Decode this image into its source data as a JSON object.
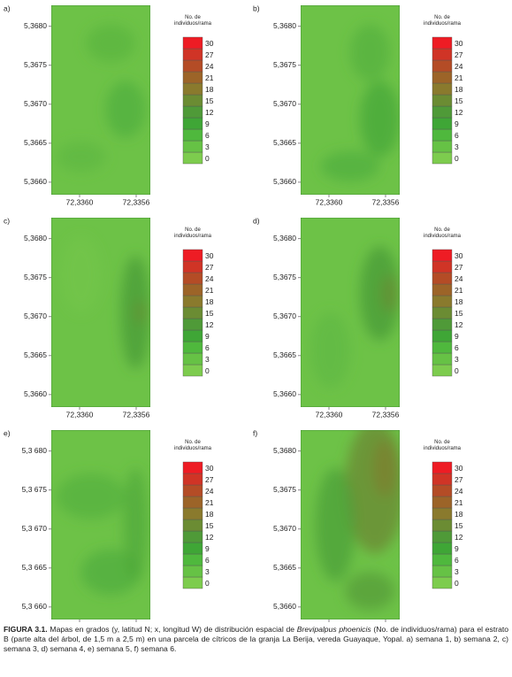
{
  "chart_data": [
    {
      "type": "contour",
      "panel": "a)",
      "xlim": [
        72.3362,
        72.3355
      ],
      "ylim": [
        5.36584,
        5.36827
      ],
      "xticks": [
        {
          "value": 72.336,
          "label": "72,3360"
        },
        {
          "value": 72.3356,
          "label": "72,3356"
        }
      ],
      "yticks": [
        {
          "value": 5.368,
          "label": "5,3680"
        },
        {
          "value": 5.3675,
          "label": "5,3675"
        },
        {
          "value": 5.367,
          "label": "5,3670"
        },
        {
          "value": 5.3665,
          "label": "5,3665"
        },
        {
          "value": 5.366,
          "label": "5,3660"
        }
      ],
      "legend": {
        "title": "No. de individuos/rama",
        "levels": [
          0,
          3,
          6,
          9,
          12,
          15,
          18,
          21,
          24,
          27,
          30
        ],
        "colors": [
          "#7dcc4e",
          "#66c245",
          "#4fb83d",
          "#3fa636",
          "#4f9a38",
          "#6b8c33",
          "#8a7a2d",
          "#9c6428",
          "#b44c26",
          "#d03426",
          "#ee1c24"
        ]
      }
    },
    {
      "type": "contour",
      "panel": "b)",
      "xlim": [
        72.3362,
        72.3355
      ],
      "ylim": [
        5.36584,
        5.36827
      ],
      "xticks": [
        {
          "value": 72.336,
          "label": "72,3360"
        },
        {
          "value": 72.3356,
          "label": "72,3356"
        }
      ],
      "yticks": [
        {
          "value": 5.368,
          "label": "5,3680"
        },
        {
          "value": 5.3675,
          "label": "5,3675"
        },
        {
          "value": 5.367,
          "label": "5,3670"
        },
        {
          "value": 5.3665,
          "label": "5,3665"
        },
        {
          "value": 5.366,
          "label": "5,3660"
        }
      ],
      "legend": {
        "title": "No. de individuos/rama",
        "levels": [
          0,
          3,
          6,
          9,
          12,
          15,
          18,
          21,
          24,
          27,
          30
        ],
        "colors": [
          "#7dcc4e",
          "#66c245",
          "#4fb83d",
          "#3fa636",
          "#4f9a38",
          "#6b8c33",
          "#8a7a2d",
          "#9c6428",
          "#b44c26",
          "#d03426",
          "#ee1c24"
        ]
      }
    },
    {
      "type": "contour",
      "panel": "c)",
      "xlim": [
        72.3362,
        72.3355
      ],
      "ylim": [
        5.36584,
        5.36827
      ],
      "xticks": [
        {
          "value": 72.336,
          "label": "72,3360"
        },
        {
          "value": 72.3356,
          "label": "72,3356"
        }
      ],
      "yticks": [
        {
          "value": 5.368,
          "label": "5,3680"
        },
        {
          "value": 5.3675,
          "label": "5,3675"
        },
        {
          "value": 5.367,
          "label": "5,3670"
        },
        {
          "value": 5.3665,
          "label": "5,3665"
        },
        {
          "value": 5.366,
          "label": "5,3660"
        }
      ],
      "legend": {
        "title": "No. de individuos/rama",
        "levels": [
          0,
          3,
          6,
          9,
          12,
          15,
          18,
          21,
          24,
          27,
          30
        ],
        "colors": [
          "#7dcc4e",
          "#66c245",
          "#4fb83d",
          "#3fa636",
          "#4f9a38",
          "#6b8c33",
          "#8a7a2d",
          "#9c6428",
          "#b44c26",
          "#d03426",
          "#ee1c24"
        ]
      }
    },
    {
      "type": "contour",
      "panel": "d)",
      "xlim": [
        72.3362,
        72.3355
      ],
      "ylim": [
        5.36584,
        5.36827
      ],
      "xticks": [
        {
          "value": 72.336,
          "label": "72,3360"
        },
        {
          "value": 72.3356,
          "label": "72,3356"
        }
      ],
      "yticks": [
        {
          "value": 5.368,
          "label": "5,3680"
        },
        {
          "value": 5.3675,
          "label": "5,3675"
        },
        {
          "value": 5.367,
          "label": "5,3670"
        },
        {
          "value": 5.3665,
          "label": "5,3665"
        },
        {
          "value": 5.366,
          "label": "5,3660"
        }
      ],
      "legend": {
        "title": "No. de individuos/rama",
        "levels": [
          0,
          3,
          6,
          9,
          12,
          15,
          18,
          21,
          24,
          27,
          30
        ],
        "colors": [
          "#7dcc4e",
          "#66c245",
          "#4fb83d",
          "#3fa636",
          "#4f9a38",
          "#6b8c33",
          "#8a7a2d",
          "#9c6428",
          "#b44c26",
          "#d03426",
          "#ee1c24"
        ]
      }
    },
    {
      "type": "contour",
      "panel": "e)",
      "xlim": [
        72.3362,
        72.3355
      ],
      "ylim": [
        5.36584,
        5.36827
      ],
      "xticks": [
        {
          "value": 72.336,
          "label": "72,3360"
        },
        {
          "value": 72.3356,
          "label": "72,3356"
        }
      ],
      "yticks": [
        {
          "value": 5.368,
          "label": "5,3 680"
        },
        {
          "value": 5.3675,
          "label": "5,3 675"
        },
        {
          "value": 5.367,
          "label": "5,3 670"
        },
        {
          "value": 5.3665,
          "label": "5,3 665"
        },
        {
          "value": 5.366,
          "label": "5,3 660"
        }
      ],
      "legend": {
        "title": "No. de individuos/rama",
        "levels": [
          0,
          3,
          6,
          9,
          12,
          15,
          18,
          21,
          24,
          27,
          30
        ],
        "colors": [
          "#7dcc4e",
          "#66c245",
          "#4fb83d",
          "#3fa636",
          "#4f9a38",
          "#6b8c33",
          "#8a7a2d",
          "#9c6428",
          "#b44c26",
          "#d03426",
          "#ee1c24"
        ]
      }
    },
    {
      "type": "contour",
      "panel": "f)",
      "xlim": [
        72.3362,
        72.3355
      ],
      "ylim": [
        5.36584,
        5.36827
      ],
      "xticks": [
        {
          "value": 72.336,
          "label": "72,3360"
        },
        {
          "value": 72.3356,
          "label": "72,3356"
        }
      ],
      "yticks": [
        {
          "value": 5.368,
          "label": "5,3680"
        },
        {
          "value": 5.3675,
          "label": "5,3675"
        },
        {
          "value": 5.367,
          "label": "5,3670"
        },
        {
          "value": 5.3665,
          "label": "5,3665"
        },
        {
          "value": 5.366,
          "label": "5,3660"
        }
      ],
      "legend": {
        "title": "No. de individuos/rama",
        "levels": [
          0,
          3,
          6,
          9,
          12,
          15,
          18,
          21,
          24,
          27,
          30
        ],
        "colors": [
          "#7dcc4e",
          "#66c245",
          "#4fb83d",
          "#3fa636",
          "#4f9a38",
          "#6b8c33",
          "#8a7a2d",
          "#9c6428",
          "#b44c26",
          "#d03426",
          "#ee1c24"
        ]
      }
    }
  ],
  "caption": {
    "label": "FIGURA 3.1.",
    "before": "Mapas en grados (y, latitud N; x, longitud W) de distribución espacial de",
    "species": "Brevipalpus phoenicis",
    "after": "(No. de individuos/rama) para el estrato B (parte alta del árbol, de 1,5 m a 2,5 m) en una parcela de cítricos de la granja La Berija, vereda Guayaque, Yopal. a) semana 1, b) semana 2, c) semana 3, d) semana 4, e) semana 5, f) semana 6."
  }
}
